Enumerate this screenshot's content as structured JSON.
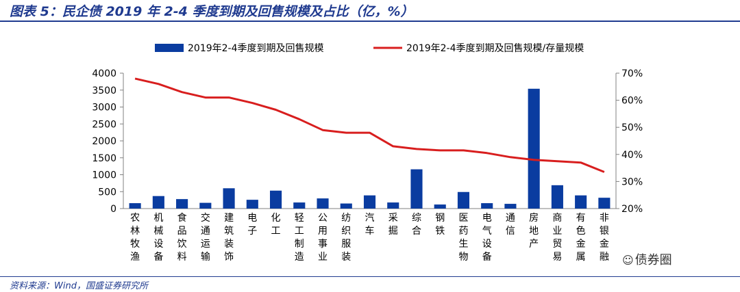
{
  "header": {
    "title": "图表 5：民企债 2019 年 2-4 季度到期及回售规模及占比（亿，%）"
  },
  "footer": {
    "source": "资料来源：Wind，国盛证券研究所",
    "watermark": "债券圈"
  },
  "chart_data": {
    "type": "bar",
    "categories": [
      "农林牧渔",
      "机械设备",
      "食品饮料",
      "交通运输",
      "建筑装饰",
      "电子",
      "化工",
      "轻工制造",
      "公用事业",
      "纺织服装",
      "汽车",
      "采掘",
      "综合",
      "钢铁",
      "医药生物",
      "电气设备",
      "通信",
      "房地产",
      "商业贸易",
      "有色金属",
      "非银金融"
    ],
    "series": [
      {
        "name": "2019年2-4季度到期及回售规模",
        "type": "bar",
        "axis": "left",
        "color": "#0a3ca0",
        "values": [
          160,
          370,
          280,
          170,
          600,
          260,
          530,
          180,
          300,
          150,
          390,
          180,
          1160,
          120,
          490,
          160,
          140,
          3540,
          690,
          390,
          320
        ]
      },
      {
        "name": "2019年2-4季度到期及回售规模/存量规模",
        "type": "line",
        "axis": "right",
        "color": "#d81e1e",
        "values": [
          68,
          66,
          63,
          61,
          61,
          59,
          56.5,
          53,
          49,
          48,
          48,
          43,
          42,
          41.5,
          41.5,
          40.5,
          39,
          38,
          37.5,
          37,
          33.5
        ]
      }
    ],
    "y_left": {
      "ylim": [
        0,
        4000
      ],
      "ticks": [
        "0",
        "500",
        "1000",
        "1500",
        "2000",
        "2500",
        "3000",
        "3500",
        "4000"
      ]
    },
    "y_right": {
      "ylim": [
        20,
        70
      ],
      "ticks": [
        "20%",
        "30%",
        "40%",
        "50%",
        "60%",
        "70%"
      ]
    },
    "legend_position": "top-center",
    "grid": false
  }
}
